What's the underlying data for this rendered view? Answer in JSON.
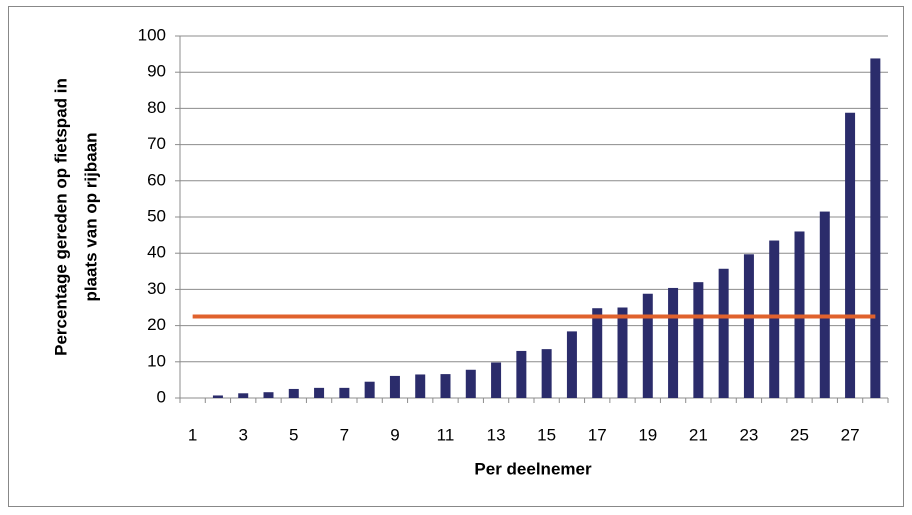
{
  "chart_data": {
    "type": "bar",
    "categories": [
      "1",
      null,
      "3",
      null,
      "5",
      null,
      "7",
      null,
      "9",
      null,
      "11",
      null,
      "13",
      null,
      "15",
      null,
      "17",
      null,
      "19",
      null,
      "21",
      null,
      "23",
      null,
      "25",
      null,
      "27",
      null
    ],
    "values": [
      0,
      0.7,
      1.3,
      1.6,
      2.5,
      2.8,
      2.8,
      4.5,
      6.1,
      6.5,
      6.6,
      7.8,
      9.8,
      13,
      13.5,
      18.4,
      24.8,
      25,
      28.8,
      30.4,
      32,
      35.7,
      39.7,
      43.5,
      46,
      51.5,
      78.8,
      93.8
    ],
    "color": "#2b2c6b",
    "mean_line": {
      "value": 22.5,
      "color": "#e0622d"
    },
    "xlabel": "Per deelnemer",
    "ylabel": [
      "Percentage gereden op fietspad in",
      "plaats van op rijbaan"
    ],
    "ylim": [
      0,
      100
    ],
    "yticks": [
      0,
      10,
      20,
      30,
      40,
      50,
      60,
      70,
      80,
      90,
      100
    ],
    "grid": true
  }
}
